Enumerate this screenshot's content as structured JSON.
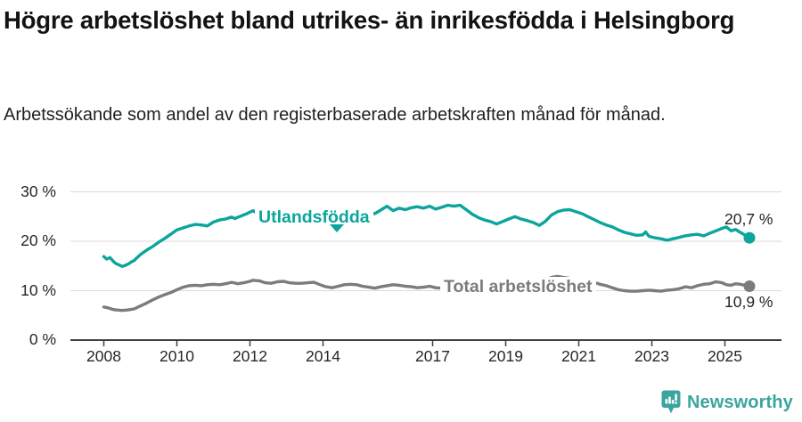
{
  "chart_data": {
    "type": "line",
    "title": "Högre arbetslöshet bland utrikes- än inrikesfödda i Helsingborg",
    "subtitle": "Arbetssökande som andel av den registerbaserade arbetskraften månad för månad.",
    "unit": "%",
    "grid": true,
    "legend_position": "inline-on-line",
    "x_axis": {
      "ticks": [
        2008,
        2010,
        2012,
        2014,
        2017,
        2019,
        2021,
        2023,
        2025
      ],
      "labels": [
        "2008",
        "2010",
        "2012",
        "2014",
        "2017",
        "2019",
        "2021",
        "2023",
        "2025"
      ],
      "range": [
        2007.6,
        2025.95
      ]
    },
    "y_axis": {
      "ticks": [
        30,
        20,
        10,
        0
      ],
      "tick_labels": [
        "30 %",
        "20 %",
        "10 %",
        "0 %"
      ],
      "range": [
        0,
        33.5
      ]
    },
    "series": [
      {
        "name": "Utlandsfödda",
        "color": "#0ba59c",
        "end_label": "20,7 %",
        "end_value": 20.7,
        "points": [
          [
            2008.0,
            16.9
          ],
          [
            2008.08,
            16.4
          ],
          [
            2008.17,
            16.7
          ],
          [
            2008.25,
            16.0
          ],
          [
            2008.33,
            15.5
          ],
          [
            2008.42,
            15.2
          ],
          [
            2008.5,
            14.9
          ],
          [
            2008.58,
            15.1
          ],
          [
            2008.67,
            15.4
          ],
          [
            2008.75,
            15.8
          ],
          [
            2008.83,
            16.1
          ],
          [
            2009.0,
            17.3
          ],
          [
            2009.17,
            18.2
          ],
          [
            2009.33,
            18.9
          ],
          [
            2009.5,
            19.8
          ],
          [
            2009.67,
            20.6
          ],
          [
            2009.83,
            21.4
          ],
          [
            2010.0,
            22.3
          ],
          [
            2010.17,
            22.7
          ],
          [
            2010.33,
            23.1
          ],
          [
            2010.5,
            23.4
          ],
          [
            2010.67,
            23.3
          ],
          [
            2010.83,
            23.1
          ],
          [
            2011.0,
            23.9
          ],
          [
            2011.17,
            24.3
          ],
          [
            2011.33,
            24.5
          ],
          [
            2011.5,
            24.9
          ],
          [
            2011.58,
            24.6
          ],
          [
            2011.75,
            25.1
          ],
          [
            2011.92,
            25.6
          ],
          [
            2012.08,
            26.2
          ],
          [
            2012.25,
            25.4
          ],
          [
            2012.42,
            25.6
          ],
          [
            2012.58,
            25.9
          ],
          [
            2012.75,
            25.6
          ],
          [
            2012.92,
            25.8
          ],
          [
            2013.08,
            25.9
          ],
          [
            2013.25,
            25.6
          ],
          [
            2013.42,
            25.8
          ],
          [
            2013.58,
            25.5
          ],
          [
            2013.75,
            25.7
          ],
          [
            2013.92,
            25.9
          ],
          [
            2014.08,
            25.7
          ],
          [
            2014.25,
            25.5
          ],
          [
            2014.42,
            25.4
          ],
          [
            2014.58,
            25.7
          ],
          [
            2014.75,
            25.9
          ],
          [
            2014.92,
            26.0
          ],
          [
            2015.08,
            25.9
          ],
          [
            2015.25,
            25.7
          ],
          [
            2015.42,
            25.6
          ],
          [
            2015.58,
            26.3
          ],
          [
            2015.75,
            27.1
          ],
          [
            2015.92,
            26.2
          ],
          [
            2016.08,
            26.7
          ],
          [
            2016.25,
            26.4
          ],
          [
            2016.42,
            26.8
          ],
          [
            2016.58,
            27.0
          ],
          [
            2016.75,
            26.7
          ],
          [
            2016.92,
            27.1
          ],
          [
            2017.08,
            26.5
          ],
          [
            2017.25,
            26.9
          ],
          [
            2017.42,
            27.3
          ],
          [
            2017.58,
            27.1
          ],
          [
            2017.75,
            27.3
          ],
          [
            2017.92,
            26.4
          ],
          [
            2018.08,
            25.5
          ],
          [
            2018.25,
            24.8
          ],
          [
            2018.42,
            24.3
          ],
          [
            2018.58,
            24.0
          ],
          [
            2018.75,
            23.5
          ],
          [
            2018.92,
            24.0
          ],
          [
            2019.08,
            24.5
          ],
          [
            2019.25,
            25.0
          ],
          [
            2019.42,
            24.5
          ],
          [
            2019.58,
            24.2
          ],
          [
            2019.75,
            23.8
          ],
          [
            2019.92,
            23.2
          ],
          [
            2020.08,
            24.0
          ],
          [
            2020.25,
            25.3
          ],
          [
            2020.42,
            26.0
          ],
          [
            2020.58,
            26.3
          ],
          [
            2020.75,
            26.4
          ],
          [
            2020.92,
            26.0
          ],
          [
            2021.08,
            25.6
          ],
          [
            2021.25,
            25.0
          ],
          [
            2021.42,
            24.4
          ],
          [
            2021.58,
            23.8
          ],
          [
            2021.75,
            23.3
          ],
          [
            2021.92,
            22.9
          ],
          [
            2022.08,
            22.3
          ],
          [
            2022.25,
            21.8
          ],
          [
            2022.42,
            21.5
          ],
          [
            2022.58,
            21.2
          ],
          [
            2022.75,
            21.3
          ],
          [
            2022.83,
            21.9
          ],
          [
            2022.92,
            21.0
          ],
          [
            2023.08,
            20.7
          ],
          [
            2023.25,
            20.5
          ],
          [
            2023.42,
            20.2
          ],
          [
            2023.58,
            20.5
          ],
          [
            2023.75,
            20.8
          ],
          [
            2023.92,
            21.1
          ],
          [
            2024.08,
            21.3
          ],
          [
            2024.25,
            21.4
          ],
          [
            2024.42,
            21.1
          ],
          [
            2024.58,
            21.6
          ],
          [
            2024.75,
            22.1
          ],
          [
            2024.92,
            22.6
          ],
          [
            2025.04,
            22.9
          ],
          [
            2025.17,
            22.1
          ],
          [
            2025.29,
            22.4
          ],
          [
            2025.42,
            21.8
          ],
          [
            2025.54,
            21.3
          ],
          [
            2025.67,
            20.7
          ]
        ]
      },
      {
        "name": "Total arbetslöshet",
        "color": "#7b7b80",
        "end_label": "10,9 %",
        "end_value": 10.9,
        "points": [
          [
            2008.0,
            6.7
          ],
          [
            2008.08,
            6.6
          ],
          [
            2008.17,
            6.4
          ],
          [
            2008.25,
            6.2
          ],
          [
            2008.33,
            6.1
          ],
          [
            2008.5,
            6.0
          ],
          [
            2008.67,
            6.1
          ],
          [
            2008.83,
            6.3
          ],
          [
            2009.0,
            6.9
          ],
          [
            2009.17,
            7.5
          ],
          [
            2009.33,
            8.1
          ],
          [
            2009.5,
            8.7
          ],
          [
            2009.67,
            9.2
          ],
          [
            2009.83,
            9.6
          ],
          [
            2010.0,
            10.2
          ],
          [
            2010.17,
            10.7
          ],
          [
            2010.33,
            11.0
          ],
          [
            2010.5,
            11.1
          ],
          [
            2010.67,
            11.0
          ],
          [
            2010.83,
            11.2
          ],
          [
            2011.0,
            11.3
          ],
          [
            2011.17,
            11.2
          ],
          [
            2011.33,
            11.4
          ],
          [
            2011.5,
            11.7
          ],
          [
            2011.67,
            11.4
          ],
          [
            2011.83,
            11.6
          ],
          [
            2012.0,
            11.9
          ],
          [
            2012.08,
            12.1
          ],
          [
            2012.25,
            12.0
          ],
          [
            2012.42,
            11.6
          ],
          [
            2012.58,
            11.5
          ],
          [
            2012.75,
            11.8
          ],
          [
            2012.92,
            11.9
          ],
          [
            2013.08,
            11.6
          ],
          [
            2013.25,
            11.5
          ],
          [
            2013.42,
            11.5
          ],
          [
            2013.58,
            11.6
          ],
          [
            2013.75,
            11.7
          ],
          [
            2013.92,
            11.2
          ],
          [
            2014.08,
            10.8
          ],
          [
            2014.25,
            10.6
          ],
          [
            2014.42,
            10.9
          ],
          [
            2014.58,
            11.2
          ],
          [
            2014.75,
            11.3
          ],
          [
            2014.92,
            11.2
          ],
          [
            2015.08,
            10.9
          ],
          [
            2015.25,
            10.7
          ],
          [
            2015.42,
            10.5
          ],
          [
            2015.58,
            10.8
          ],
          [
            2015.75,
            11.0
          ],
          [
            2015.92,
            11.2
          ],
          [
            2016.08,
            11.1
          ],
          [
            2016.25,
            10.9
          ],
          [
            2016.42,
            10.8
          ],
          [
            2016.58,
            10.6
          ],
          [
            2016.75,
            10.7
          ],
          [
            2016.92,
            10.9
          ],
          [
            2017.08,
            10.6
          ],
          [
            2017.25,
            10.5
          ],
          [
            2017.42,
            10.6
          ],
          [
            2017.58,
            10.6
          ],
          [
            2017.75,
            10.4
          ],
          [
            2017.92,
            10.3
          ],
          [
            2018.08,
            10.3
          ],
          [
            2018.25,
            10.4
          ],
          [
            2018.42,
            10.5
          ],
          [
            2018.58,
            10.4
          ],
          [
            2018.75,
            10.2
          ],
          [
            2018.92,
            10.2
          ],
          [
            2019.08,
            10.3
          ],
          [
            2019.25,
            10.4
          ],
          [
            2019.42,
            10.5
          ],
          [
            2019.58,
            10.6
          ],
          [
            2019.75,
            11.0
          ],
          [
            2019.92,
            11.5
          ],
          [
            2020.08,
            12.1
          ],
          [
            2020.25,
            12.7
          ],
          [
            2020.42,
            12.9
          ],
          [
            2020.58,
            12.7
          ],
          [
            2020.75,
            12.5
          ],
          [
            2020.92,
            12.4
          ],
          [
            2021.08,
            12.3
          ],
          [
            2021.25,
            12.1
          ],
          [
            2021.42,
            11.7
          ],
          [
            2021.58,
            11.3
          ],
          [
            2021.75,
            11.0
          ],
          [
            2021.92,
            10.6
          ],
          [
            2022.08,
            10.2
          ],
          [
            2022.25,
            10.0
          ],
          [
            2022.42,
            9.9
          ],
          [
            2022.58,
            9.9
          ],
          [
            2022.75,
            10.0
          ],
          [
            2022.92,
            10.1
          ],
          [
            2023.08,
            10.0
          ],
          [
            2023.25,
            9.9
          ],
          [
            2023.42,
            10.1
          ],
          [
            2023.58,
            10.2
          ],
          [
            2023.75,
            10.4
          ],
          [
            2023.92,
            10.8
          ],
          [
            2024.08,
            10.6
          ],
          [
            2024.25,
            11.0
          ],
          [
            2024.42,
            11.3
          ],
          [
            2024.58,
            11.4
          ],
          [
            2024.75,
            11.8
          ],
          [
            2024.92,
            11.6
          ],
          [
            2025.04,
            11.2
          ],
          [
            2025.17,
            11.1
          ],
          [
            2025.29,
            11.4
          ],
          [
            2025.42,
            11.3
          ],
          [
            2025.54,
            11.1
          ],
          [
            2025.67,
            10.9
          ]
        ]
      }
    ],
    "colors": {
      "grid": "#dadada",
      "axis": "#3f3f3f",
      "tick_text": "#262626",
      "annotation_text": "#242424"
    }
  },
  "footer": {
    "brand": "Newsworthy",
    "logo_icon": "bar-chart-speech-bubble-icon",
    "brand_color": "#3aa59c"
  }
}
